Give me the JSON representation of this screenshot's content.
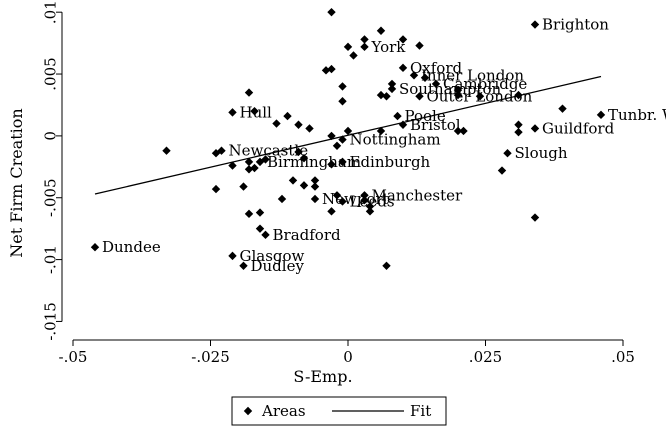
{
  "chart_data": {
    "type": "scatter",
    "title": "",
    "xlabel": "S-Emp.",
    "ylabel": "Net Firm Creation",
    "xlim": [
      -0.052,
      0.056
    ],
    "ylim": [
      -0.0165,
      0.0105
    ],
    "xticks": [
      -0.05,
      -0.025,
      0,
      0.025,
      0.05
    ],
    "xtick_labels": [
      "-.05",
      "-.025",
      "0",
      ".025",
      ".05"
    ],
    "yticks": [
      -0.015,
      -0.01,
      -0.005,
      0,
      0.005,
      0.01
    ],
    "ytick_labels": [
      "-.015",
      "-.01",
      "-.005",
      "0",
      ".005",
      ".01"
    ],
    "grid": false,
    "legend_position": "bottom-center",
    "series": [
      {
        "name": "Areas",
        "marker": "diamond",
        "color": "#000000",
        "points": [
          {
            "x": 0.034,
            "y": 0.009,
            "label": "Brighton"
          },
          {
            "x": 0.003,
            "y": 0.0072,
            "label": "York"
          },
          {
            "x": 0.01,
            "y": 0.0055,
            "label": "Oxford"
          },
          {
            "x": 0.012,
            "y": 0.0049,
            "label": "Inner London"
          },
          {
            "x": 0.016,
            "y": 0.0042,
            "label": "Cambridge"
          },
          {
            "x": 0.008,
            "y": 0.0038,
            "label": "Southampton"
          },
          {
            "x": 0.013,
            "y": 0.0032,
            "label": "Outer London"
          },
          {
            "x": 0.046,
            "y": 0.0017,
            "label": "Tunbr. Wells"
          },
          {
            "x": 0.009,
            "y": 0.0016,
            "label": "Poole"
          },
          {
            "x": 0.01,
            "y": 0.0009,
            "label": "Bristol"
          },
          {
            "x": 0.034,
            "y": 0.0006,
            "label": "Guildford"
          },
          {
            "x": -0.021,
            "y": 0.0019,
            "label": "Hull"
          },
          {
            "x": -0.001,
            "y": -0.0003,
            "label": "Nottingham"
          },
          {
            "x": -0.023,
            "y": -0.0012,
            "label": "Newcastle"
          },
          {
            "x": -0.016,
            "y": -0.0021,
            "label": "Birmingham"
          },
          {
            "x": -0.001,
            "y": -0.0021,
            "label": "Edinburgh"
          },
          {
            "x": 0.029,
            "y": -0.0014,
            "label": "Slough"
          },
          {
            "x": 0.003,
            "y": -0.0048,
            "label": "Manchester"
          },
          {
            "x": -0.006,
            "y": -0.0051,
            "label": "Newport"
          },
          {
            "x": -0.001,
            "y": -0.0053,
            "label": "Leeds"
          },
          {
            "x": -0.046,
            "y": -0.009,
            "label": "Dundee"
          },
          {
            "x": -0.015,
            "y": -0.008,
            "label": "Bradford"
          },
          {
            "x": -0.021,
            "y": -0.0097,
            "label": "Glasgow"
          },
          {
            "x": -0.019,
            "y": -0.0105,
            "label": "Dudley"
          },
          {
            "x": -0.003,
            "y": 0.01
          },
          {
            "x": 0.006,
            "y": 0.0085
          },
          {
            "x": 0.01,
            "y": 0.0078
          },
          {
            "x": 0.013,
            "y": 0.0073
          },
          {
            "x": 0.0,
            "y": 0.0072
          },
          {
            "x": 0.003,
            "y": 0.0078
          },
          {
            "x": 0.001,
            "y": 0.0065
          },
          {
            "x": -0.004,
            "y": 0.0053
          },
          {
            "x": -0.003,
            "y": 0.0054
          },
          {
            "x": 0.014,
            "y": 0.0047
          },
          {
            "x": 0.02,
            "y": 0.0037
          },
          {
            "x": 0.02,
            "y": 0.0033
          },
          {
            "x": 0.024,
            "y": 0.0032
          },
          {
            "x": 0.031,
            "y": 0.0033
          },
          {
            "x": 0.039,
            "y": 0.0022
          },
          {
            "x": -0.001,
            "y": 0.004
          },
          {
            "x": 0.008,
            "y": 0.0042
          },
          {
            "x": 0.006,
            "y": 0.0033
          },
          {
            "x": 0.007,
            "y": 0.0032
          },
          {
            "x": -0.018,
            "y": 0.0035
          },
          {
            "x": -0.017,
            "y": 0.002
          },
          {
            "x": -0.011,
            "y": 0.0016
          },
          {
            "x": -0.013,
            "y": 0.001
          },
          {
            "x": -0.009,
            "y": 0.0009
          },
          {
            "x": -0.007,
            "y": 0.0006
          },
          {
            "x": -0.001,
            "y": 0.0028
          },
          {
            "x": 0.006,
            "y": 0.0004
          },
          {
            "x": 0.02,
            "y": 0.0004
          },
          {
            "x": 0.021,
            "y": 0.0004
          },
          {
            "x": 0.031,
            "y": 0.0009
          },
          {
            "x": 0.031,
            "y": 0.0003
          },
          {
            "x": 0.0,
            "y": 0.0004
          },
          {
            "x": -0.002,
            "y": -0.0008
          },
          {
            "x": -0.003,
            "y": 0.0
          },
          {
            "x": -0.033,
            "y": -0.0012
          },
          {
            "x": -0.024,
            "y": -0.0014
          },
          {
            "x": -0.021,
            "y": -0.0024
          },
          {
            "x": -0.018,
            "y": -0.0021
          },
          {
            "x": -0.018,
            "y": -0.0027
          },
          {
            "x": -0.017,
            "y": -0.0026
          },
          {
            "x": -0.015,
            "y": -0.0019
          },
          {
            "x": -0.009,
            "y": -0.0013
          },
          {
            "x": -0.008,
            "y": -0.0018
          },
          {
            "x": -0.006,
            "y": -0.0036
          },
          {
            "x": -0.003,
            "y": -0.0023
          },
          {
            "x": -0.006,
            "y": -0.0041
          },
          {
            "x": -0.008,
            "y": -0.004
          },
          {
            "x": -0.01,
            "y": -0.0036
          },
          {
            "x": -0.024,
            "y": -0.0043
          },
          {
            "x": -0.019,
            "y": -0.0041
          },
          {
            "x": -0.018,
            "y": -0.0063
          },
          {
            "x": -0.016,
            "y": -0.0062
          },
          {
            "x": -0.016,
            "y": -0.0075
          },
          {
            "x": -0.012,
            "y": -0.0051
          },
          {
            "x": -0.002,
            "y": -0.0048
          },
          {
            "x": 0.004,
            "y": -0.0057
          },
          {
            "x": 0.003,
            "y": -0.0052
          },
          {
            "x": -0.003,
            "y": -0.0061
          },
          {
            "x": 0.004,
            "y": -0.0061
          },
          {
            "x": 0.007,
            "y": -0.0105
          },
          {
            "x": 0.028,
            "y": -0.0028
          },
          {
            "x": 0.034,
            "y": -0.0066
          }
        ]
      },
      {
        "name": "Fit",
        "type": "line",
        "color": "#000000",
        "x": [
          -0.046,
          0.046
        ],
        "y": [
          -0.0047,
          0.0048
        ]
      }
    ]
  }
}
